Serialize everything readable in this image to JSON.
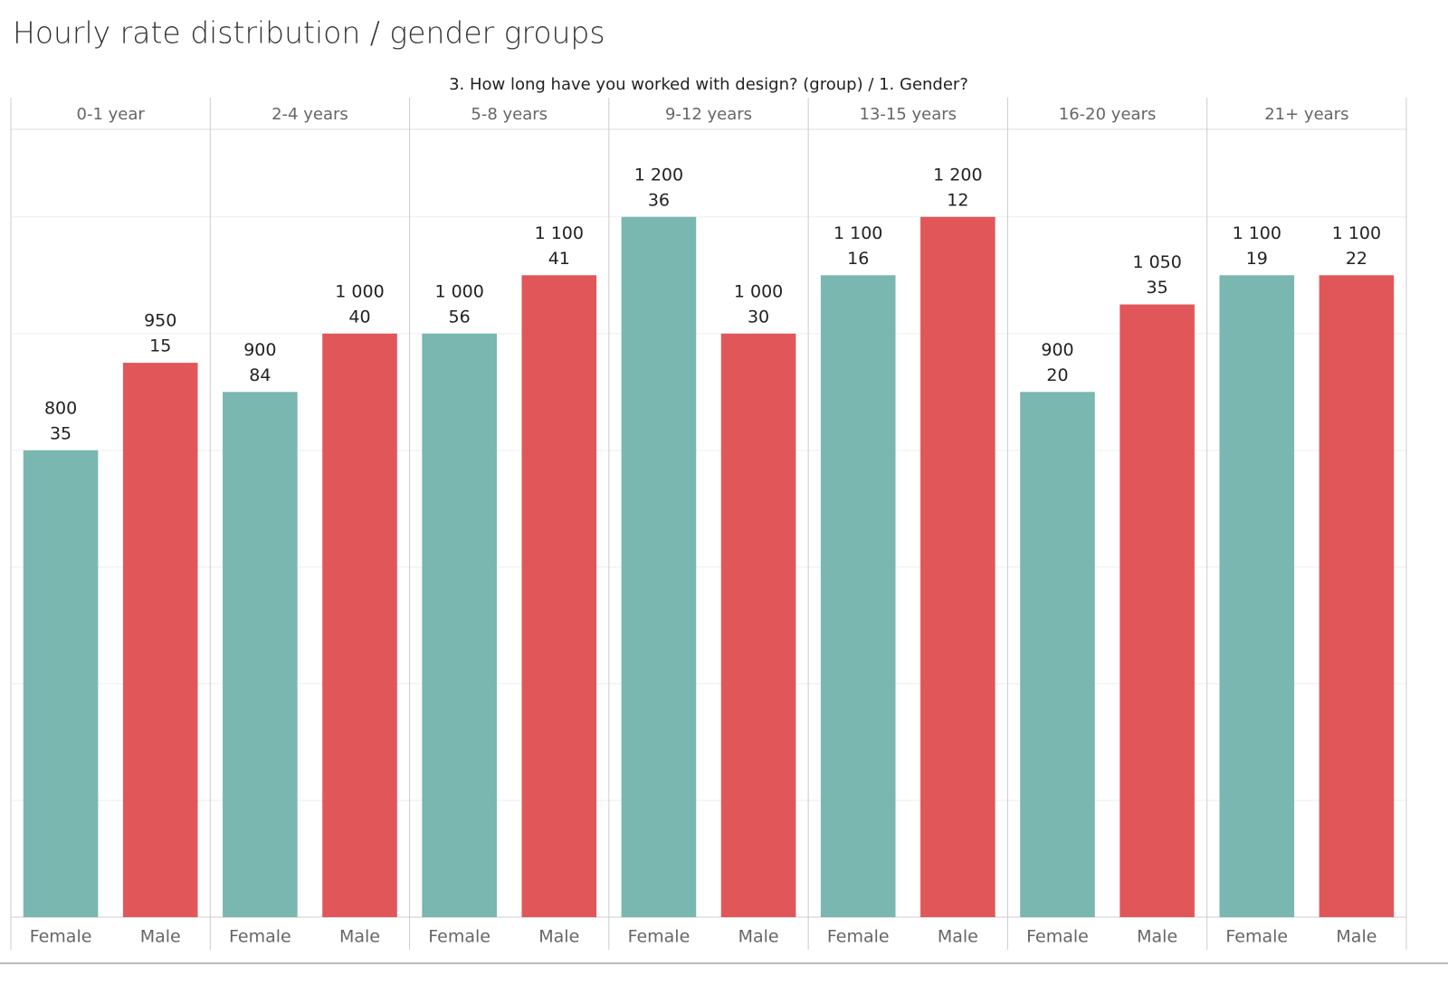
{
  "chart_data": {
    "type": "bar",
    "title": "Hourly rate distribution / gender groups",
    "header": "3. How long have you worked with design? (group)  /  1. Gender?",
    "groups": [
      "0-1 year",
      "2-4 years",
      "5-8 years",
      "9-12 years",
      "13-15 years",
      "16-20 years",
      "21+ years"
    ],
    "series": [
      {
        "name": "Female",
        "color": "#79b7b0",
        "values": [
          800,
          900,
          1000,
          1200,
          1100,
          900,
          1100
        ],
        "value_labels": [
          "800",
          "900",
          "1 000",
          "1 200",
          "1 100",
          "900",
          "1 100"
        ],
        "counts": [
          35,
          84,
          56,
          36,
          16,
          20,
          19
        ]
      },
      {
        "name": "Male",
        "color": "#e15759",
        "values": [
          950,
          1000,
          1100,
          1000,
          1200,
          1050,
          1100
        ],
        "value_labels": [
          "950",
          "1 000",
          "1 100",
          "1 000",
          "1 200",
          "1 050",
          "1 100"
        ],
        "counts": [
          15,
          40,
          41,
          30,
          12,
          35,
          22
        ]
      }
    ],
    "ylim": [
      0,
      1350
    ],
    "yticks": [
      0,
      200,
      400,
      600,
      800,
      1000,
      1200
    ],
    "grid": true
  }
}
